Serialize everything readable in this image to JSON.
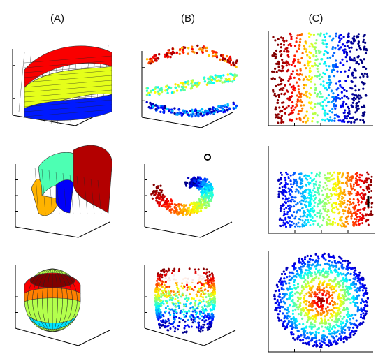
{
  "columns": [
    {
      "label": "(A)"
    },
    {
      "label": "(B)"
    },
    {
      "label": "(C)"
    }
  ],
  "rows": [
    {
      "manifold": "s-curve"
    },
    {
      "manifold": "swiss-roll"
    },
    {
      "manifold": "sphere"
    }
  ],
  "colors": {
    "axis": "#000000",
    "jet_low": "#00008f",
    "jet_mid": "#80ff80",
    "jet_high": "#800000",
    "grid": "#333333",
    "background": "#ffffff"
  }
}
